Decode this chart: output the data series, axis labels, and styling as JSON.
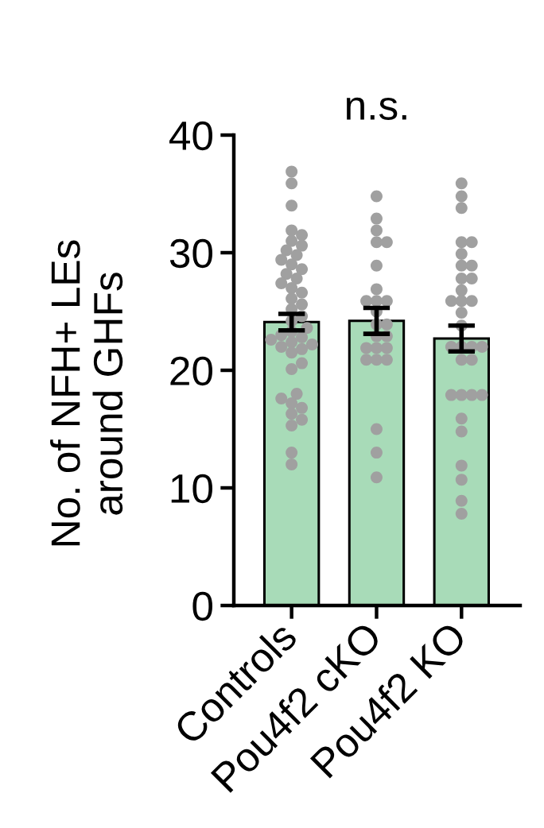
{
  "chart_data": {
    "type": "bar",
    "ylabel": "No. of NFH+ LEs\naround GHFs",
    "annotations": [
      "n.s."
    ],
    "categories": [
      "Controls",
      "Pou4f2 cKO",
      "Pou4f2 KO"
    ],
    "ylim": [
      0,
      40
    ],
    "yticks": [
      0,
      10,
      20,
      30,
      40
    ],
    "marker": "circle",
    "series": [
      {
        "color": "#a8dbb8",
        "values": [
          24.1,
          24.2,
          22.7
        ],
        "errors": [
          0.7,
          1.1,
          1.1
        ]
      },
      {
        "type": "scatter",
        "color": "#a0a0a0",
        "x": [
          "Controls",
          "Controls",
          "Controls",
          "Controls",
          "Controls",
          "Controls",
          "Controls",
          "Controls",
          "Controls",
          "Controls",
          "Controls",
          "Controls",
          "Controls",
          "Controls",
          "Controls",
          "Controls",
          "Controls",
          "Controls",
          "Controls",
          "Controls",
          "Controls",
          "Controls",
          "Controls",
          "Controls",
          "Controls",
          "Controls",
          "Controls",
          "Controls",
          "Controls",
          "Controls",
          "Controls",
          "Controls",
          "Controls",
          "Controls",
          "Controls",
          "Controls",
          "Controls",
          "Controls",
          "Controls",
          "Controls",
          "Controls",
          "Controls",
          "Controls",
          "Pou4f2 cKO",
          "Pou4f2 cKO",
          "Pou4f2 cKO",
          "Pou4f2 cKO",
          "Pou4f2 cKO",
          "Pou4f2 cKO",
          "Pou4f2 cKO",
          "Pou4f2 cKO",
          "Pou4f2 cKO",
          "Pou4f2 cKO",
          "Pou4f2 cKO",
          "Pou4f2 cKO",
          "Pou4f2 cKO",
          "Pou4f2 cKO",
          "Pou4f2 cKO",
          "Pou4f2 cKO",
          "Pou4f2 cKO",
          "Pou4f2 cKO",
          "Pou4f2 cKO",
          "Pou4f2 cKO",
          "Pou4f2 cKO",
          "Pou4f2 cKO",
          "Pou4f2 cKO",
          "Pou4f2 cKO",
          "Pou4f2 KO",
          "Pou4f2 KO",
          "Pou4f2 KO",
          "Pou4f2 KO",
          "Pou4f2 KO",
          "Pou4f2 KO",
          "Pou4f2 KO",
          "Pou4f2 KO",
          "Pou4f2 KO",
          "Pou4f2 KO",
          "Pou4f2 KO",
          "Pou4f2 KO",
          "Pou4f2 KO",
          "Pou4f2 KO",
          "Pou4f2 KO",
          "Pou4f2 KO",
          "Pou4f2 KO",
          "Pou4f2 KO",
          "Pou4f2 KO",
          "Pou4f2 KO",
          "Pou4f2 KO",
          "Pou4f2 KO",
          "Pou4f2 KO",
          "Pou4f2 KO",
          "Pou4f2 KO",
          "Pou4f2 KO",
          "Pou4f2 KO",
          "Pou4f2 KO",
          "Pou4f2 KO",
          "Pou4f2 KO",
          "Pou4f2 KO",
          "Pou4f2 KO"
        ],
        "values": [
          36.9,
          35.9,
          34.0,
          31.9,
          31.5,
          31.0,
          30.6,
          30.2,
          29.8,
          29.4,
          29.0,
          28.6,
          28.2,
          27.8,
          27.4,
          27.0,
          26.6,
          26.1,
          25.6,
          25.2,
          24.6,
          24.2,
          23.6,
          23.3,
          23.0,
          22.8,
          22.6,
          22.4,
          22.2,
          22.0,
          21.8,
          21.5,
          20.6,
          20.1,
          18.0,
          17.6,
          17.2,
          16.8,
          16.3,
          15.8,
          15.3,
          13.0,
          12.0,
          34.8,
          32.9,
          31.9,
          30.9,
          30.9,
          28.9,
          26.9,
          25.9,
          25.9,
          25.9,
          25.0,
          23.9,
          23.9,
          22.9,
          22.9,
          21.9,
          21.9,
          21.9,
          20.9,
          20.9,
          20.9,
          15.0,
          13.0,
          10.9,
          35.9,
          34.8,
          33.8,
          30.9,
          30.9,
          29.9,
          28.9,
          28.9,
          27.8,
          27.8,
          26.8,
          25.9,
          25.9,
          25.9,
          24.9,
          23.8,
          22.0,
          22.0,
          22.0,
          22.0,
          20.9,
          20.9,
          17.9,
          17.9,
          17.9,
          17.9,
          15.9,
          14.8,
          11.9,
          10.7,
          8.9,
          7.8
        ]
      }
    ]
  }
}
